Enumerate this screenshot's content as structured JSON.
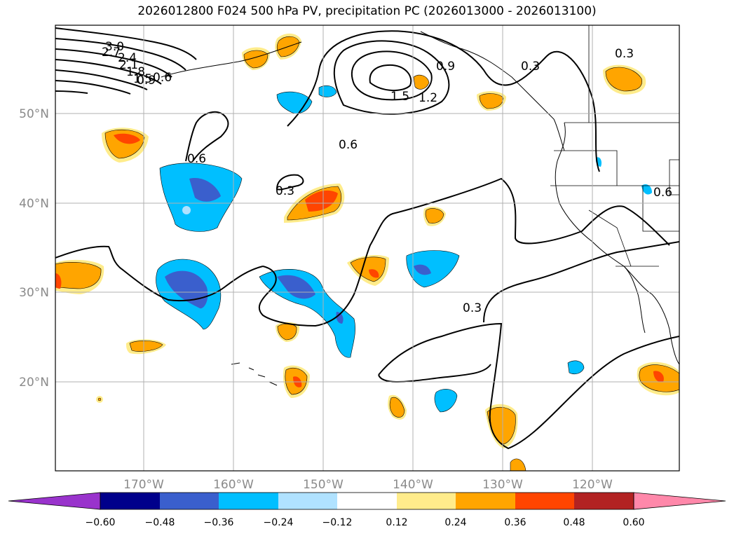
{
  "title": "2026012800 F024 500 hPa PV, precipitation PC (2026013000 - 2026013100)",
  "map": {
    "lon_labels": [
      "170°W",
      "160°W",
      "150°W",
      "140°W",
      "130°W",
      "120°W"
    ],
    "lat_labels": [
      "50°N",
      "40°N",
      "30°N",
      "20°N"
    ],
    "contour_labels": [
      "3.0",
      "2.7",
      "2.4",
      "2.1",
      "1.8",
      "1.5",
      "0.9",
      "0.6",
      "0.6",
      "0.3",
      "1.5",
      "1.2",
      "0.9",
      "0.3",
      "0.6",
      "0.3",
      "0.6",
      "0.3"
    ],
    "contour_color": "#000000",
    "gridlines": true,
    "land_outline_color": "#000000"
  },
  "colorbar": {
    "ticks": [
      "−0.60",
      "−0.48",
      "−0.36",
      "−0.24",
      "−0.12",
      "0.12",
      "0.24",
      "0.36",
      "0.48",
      "0.60"
    ],
    "colors": [
      "#9933cc",
      "#00008b",
      "#3a5fcd",
      "#00bfff",
      "#b0e2ff",
      "#ffffff",
      "#ffec8b",
      "#ffa500",
      "#ff4500",
      "#b22222",
      "#ff88aa"
    ],
    "extend": "both"
  }
}
